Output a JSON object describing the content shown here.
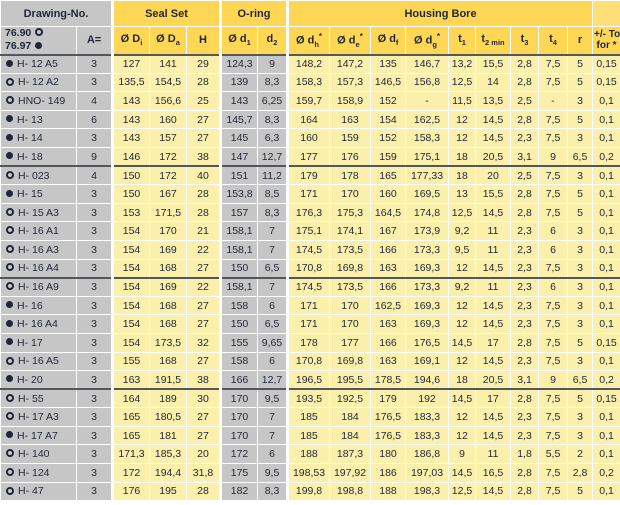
{
  "header": {
    "groups": {
      "drawing": "Drawing-No.",
      "seal_set": "Seal Set",
      "oring": "O-ring",
      "housing": "Housing Bore"
    },
    "legend": [
      {
        "code": "76.90",
        "marker": "open"
      },
      {
        "code": "76.97",
        "marker": "filled"
      }
    ],
    "a_label": "A=",
    "columns": [
      {
        "base": "Ø D",
        "sub": "i"
      },
      {
        "base": "Ø D",
        "sub": "a"
      },
      {
        "base": "H"
      },
      {
        "base": "Ø d",
        "sub": "1"
      },
      {
        "base": "d",
        "sub": "2"
      },
      {
        "base": "Ø d",
        "sub": "h",
        "sup": "*"
      },
      {
        "base": "Ø d",
        "sub": "e",
        "sup": "*"
      },
      {
        "base": "Ø d",
        "sub": "f"
      },
      {
        "base": "Ø d",
        "sub": "g",
        "sup": "*"
      },
      {
        "base": "t",
        "sub": "1"
      },
      {
        "base": "t",
        "sub": "2 min"
      },
      {
        "base": "t",
        "sub": "3"
      },
      {
        "base": "t",
        "sub": "4"
      },
      {
        "base": "r"
      }
    ],
    "tol": {
      "line1": "+/- Tol.",
      "line2": "for *"
    }
  },
  "colors": {
    "header_gold": "#ffd754",
    "cell_pale_yellow": "#fbefac",
    "cell_gray": "#c6c6c6",
    "text": "#1f2736",
    "group_line": "#53565a"
  },
  "rows": [
    {
      "marker": "filled",
      "name": "H- 12 A5",
      "a": "3",
      "values": [
        "127",
        "141",
        "29",
        "124,3",
        "9",
        "148,2",
        "147,2",
        "135",
        "146,7",
        "13,2",
        "15,5",
        "2,8",
        "7,5",
        "5"
      ],
      "tol": "0,15",
      "group_end": false
    },
    {
      "marker": "open",
      "name": "H- 12 A2",
      "a": "3",
      "values": [
        "135,5",
        "154,5",
        "28",
        "139",
        "8,3",
        "158,3",
        "157,3",
        "146,5",
        "156,8",
        "12,5",
        "14",
        "2,8",
        "7,5",
        "5"
      ],
      "tol": "0,15",
      "group_end": false
    },
    {
      "marker": "open",
      "name": "HNO- 149",
      "a": "4",
      "values": [
        "143",
        "156,6",
        "25",
        "143",
        "6,25",
        "159,7",
        "158,9",
        "152",
        "-",
        "11,5",
        "13,5",
        "2,5",
        "-",
        "3"
      ],
      "tol": "0,1",
      "group_end": false
    },
    {
      "marker": "filled",
      "name": "H- 13",
      "a": "6",
      "values": [
        "143",
        "160",
        "27",
        "145,7",
        "8,3",
        "164",
        "163",
        "154",
        "162,5",
        "12",
        "14,5",
        "2,8",
        "7,5",
        "5"
      ],
      "tol": "0,1",
      "group_end": false
    },
    {
      "marker": "filled",
      "name": "H- 14",
      "a": "3",
      "values": [
        "143",
        "157",
        "27",
        "145",
        "6,3",
        "160",
        "159",
        "152",
        "158,3",
        "12",
        "14,5",
        "2,3",
        "7,5",
        "3"
      ],
      "tol": "0,1",
      "group_end": false
    },
    {
      "marker": "filled",
      "name": "H- 18",
      "a": "9",
      "values": [
        "146",
        "172",
        "38",
        "147",
        "12,7",
        "177",
        "176",
        "159",
        "175,1",
        "18",
        "20,5",
        "3,1",
        "9",
        "6,5"
      ],
      "tol": "0,2",
      "group_end": true
    },
    {
      "marker": "open",
      "name": "H- 023",
      "a": "4",
      "values": [
        "150",
        "172",
        "40",
        "151",
        "11,2",
        "179",
        "178",
        "165",
        "177,33",
        "18",
        "20",
        "2,5",
        "7,5",
        "3"
      ],
      "tol": "0,1",
      "group_end": false
    },
    {
      "marker": "filled",
      "name": "H- 15",
      "a": "3",
      "values": [
        "150",
        "167",
        "28",
        "153,8",
        "8,5",
        "171",
        "170",
        "160",
        "169,5",
        "13",
        "15,5",
        "2,8",
        "7,5",
        "5"
      ],
      "tol": "0,1",
      "group_end": false
    },
    {
      "marker": "open",
      "name": "H- 15 A3",
      "a": "3",
      "values": [
        "153",
        "171,5",
        "28",
        "157",
        "8,3",
        "176,3",
        "175,3",
        "164,5",
        "174,8",
        "12,5",
        "14,5",
        "2,8",
        "7,5",
        "5"
      ],
      "tol": "0,1",
      "group_end": false
    },
    {
      "marker": "open",
      "name": "H- 16 A1",
      "a": "3",
      "values": [
        "154",
        "170",
        "21",
        "158,1",
        "7",
        "175,1",
        "174,1",
        "167",
        "173,9",
        "9,2",
        "11",
        "2,3",
        "6",
        "3"
      ],
      "tol": "0,1",
      "group_end": false
    },
    {
      "marker": "open",
      "name": "H- 16 A3",
      "a": "3",
      "values": [
        "154",
        "169",
        "22",
        "158,1",
        "7",
        "174,5",
        "173,5",
        "166",
        "173,3",
        "9,5",
        "11",
        "2,3",
        "6",
        "3"
      ],
      "tol": "0,1",
      "group_end": false
    },
    {
      "marker": "open",
      "name": "H- 16 A4",
      "a": "3",
      "values": [
        "154",
        "168",
        "27",
        "150",
        "6,5",
        "170,8",
        "169,8",
        "163",
        "169,3",
        "12",
        "14,5",
        "2,3",
        "7,5",
        "3"
      ],
      "tol": "0,1",
      "group_end": true
    },
    {
      "marker": "open",
      "name": "H- 16 A9",
      "a": "3",
      "values": [
        "154",
        "169",
        "22",
        "158,1",
        "7",
        "174,5",
        "173,5",
        "166",
        "173,3",
        "9,2",
        "11",
        "2,3",
        "6",
        "3"
      ],
      "tol": "0,1",
      "group_end": false
    },
    {
      "marker": "filled",
      "name": "H- 16",
      "a": "3",
      "values": [
        "154",
        "168",
        "27",
        "158",
        "6",
        "171",
        "170",
        "162,5",
        "169,3",
        "12",
        "14,5",
        "2,3",
        "7,5",
        "3"
      ],
      "tol": "0,1",
      "group_end": false
    },
    {
      "marker": "filled",
      "name": "H- 16 A4",
      "a": "3",
      "values": [
        "154",
        "168",
        "27",
        "150",
        "6,5",
        "171",
        "170",
        "163",
        "169,3",
        "12",
        "14,5",
        "2,3",
        "7,5",
        "3"
      ],
      "tol": "0,1",
      "group_end": false
    },
    {
      "marker": "filled",
      "name": "H- 17",
      "a": "3",
      "values": [
        "154",
        "173,5",
        "32",
        "155",
        "9,65",
        "178",
        "177",
        "166",
        "176,5",
        "14,5",
        "17",
        "2,8",
        "7,5",
        "5"
      ],
      "tol": "0,15",
      "group_end": false
    },
    {
      "marker": "open",
      "name": "H- 16 A5",
      "a": "3",
      "values": [
        "155",
        "168",
        "27",
        "158",
        "6",
        "170,8",
        "169,8",
        "163",
        "169,1",
        "12",
        "14,5",
        "2,3",
        "7,5",
        "3"
      ],
      "tol": "0,1",
      "group_end": false
    },
    {
      "marker": "filled",
      "name": "H- 20",
      "a": "3",
      "values": [
        "163",
        "191,5",
        "38",
        "166",
        "12,7",
        "196,5",
        "195,5",
        "178,5",
        "194,6",
        "18",
        "20,5",
        "3,1",
        "9",
        "6,5"
      ],
      "tol": "0,2",
      "group_end": true
    },
    {
      "marker": "open",
      "name": "H- 55",
      "a": "3",
      "values": [
        "164",
        "189",
        "30",
        "170",
        "9,5",
        "193,5",
        "192,5",
        "179",
        "192",
        "14,5",
        "17",
        "2,8",
        "7,5",
        "5"
      ],
      "tol": "0,15",
      "group_end": false
    },
    {
      "marker": "open",
      "name": "H- 17 A3",
      "a": "3",
      "values": [
        "165",
        "180,5",
        "27",
        "170",
        "7",
        "185",
        "184",
        "176,5",
        "183,3",
        "12",
        "14,5",
        "2,3",
        "7,5",
        "3"
      ],
      "tol": "0,1",
      "group_end": false
    },
    {
      "marker": "filled",
      "name": "H- 17 A7",
      "a": "3",
      "values": [
        "165",
        "181",
        "27",
        "170",
        "7",
        "185",
        "184",
        "176,5",
        "183,3",
        "12",
        "14,5",
        "2,3",
        "7,5",
        "3"
      ],
      "tol": "0,1",
      "group_end": false
    },
    {
      "marker": "open",
      "name": "H- 140",
      "a": "3",
      "values": [
        "171,3",
        "185,3",
        "20",
        "172",
        "6",
        "188",
        "187,3",
        "180",
        "186,8",
        "9",
        "11",
        "1,8",
        "5,5",
        "2"
      ],
      "tol": "0,1",
      "group_end": false
    },
    {
      "marker": "open",
      "name": "H- 124",
      "a": "3",
      "values": [
        "172",
        "194,4",
        "31,8",
        "175",
        "9,5",
        "198,53",
        "197,92",
        "186",
        "197,03",
        "14,5",
        "16,5",
        "2,8",
        "7,5",
        "2,8"
      ],
      "tol": "0,2",
      "group_end": false
    },
    {
      "marker": "open",
      "name": "H- 47",
      "a": "3",
      "values": [
        "176",
        "195",
        "28",
        "182",
        "8,3",
        "199,8",
        "198,8",
        "188",
        "198,3",
        "12,5",
        "14,5",
        "2,8",
        "7,5",
        "5"
      ],
      "tol": "0,1",
      "group_end": false
    }
  ]
}
